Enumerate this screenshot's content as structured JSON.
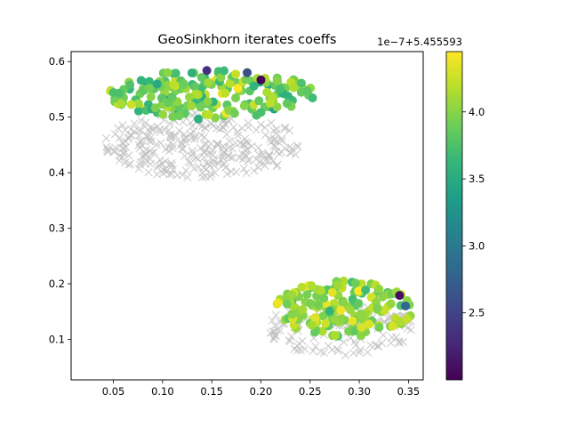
{
  "chart_data": {
    "type": "scatter",
    "title": "GeoSinkhorn iterates coeffs",
    "xlim": [
      0.007,
      0.365
    ],
    "ylim": [
      0.027,
      0.618
    ],
    "x_ticks": [
      "0.05",
      "0.10",
      "0.15",
      "0.20",
      "0.25",
      "0.30",
      "0.35"
    ],
    "y_ticks": [
      "0.1",
      "0.2",
      "0.3",
      "0.4",
      "0.5",
      "0.6"
    ],
    "grid": false,
    "colorbar": {
      "colormap": "viridis",
      "range": [
        2.0,
        4.45
      ],
      "ticks": [
        "2.5",
        "3.0",
        "3.5",
        "4.0"
      ],
      "offset_label": "1e−7+5.455593"
    },
    "series": [
      {
        "marker": "x",
        "color": "#bcbcbc",
        "clusters": [
          {
            "cx": 0.14,
            "cy": 0.45,
            "rx": 0.1,
            "ry": 0.06,
            "n": 300,
            "seed": 11
          }
        ]
      },
      {
        "marker": "x",
        "color": "#bcbcbc",
        "clusters": [
          {
            "cx": 0.28,
            "cy": 0.12,
            "rx": 0.075,
            "ry": 0.05,
            "n": 150,
            "seed": 23
          }
        ]
      },
      {
        "marker": "o",
        "colored_by": "coefficient",
        "clusters": [
          {
            "cx": 0.15,
            "cy": 0.54,
            "rx": 0.105,
            "ry": 0.045,
            "n": 200,
            "seed": 5,
            "mean": 3.9,
            "spread": 0.45
          },
          {
            "cx": 0.285,
            "cy": 0.155,
            "rx": 0.07,
            "ry": 0.05,
            "n": 160,
            "seed": 41,
            "mean": 4.05,
            "spread": 0.35
          }
        ],
        "extra_points": [
          {
            "x": 0.2,
            "y": 0.567,
            "value": 2.02
          },
          {
            "x": 0.341,
            "y": 0.179,
            "value": 2.1
          },
          {
            "x": 0.145,
            "y": 0.584,
            "value": 2.35
          },
          {
            "x": 0.186,
            "y": 0.58,
            "value": 2.6
          },
          {
            "x": 0.347,
            "y": 0.16,
            "value": 2.8
          }
        ]
      }
    ]
  }
}
